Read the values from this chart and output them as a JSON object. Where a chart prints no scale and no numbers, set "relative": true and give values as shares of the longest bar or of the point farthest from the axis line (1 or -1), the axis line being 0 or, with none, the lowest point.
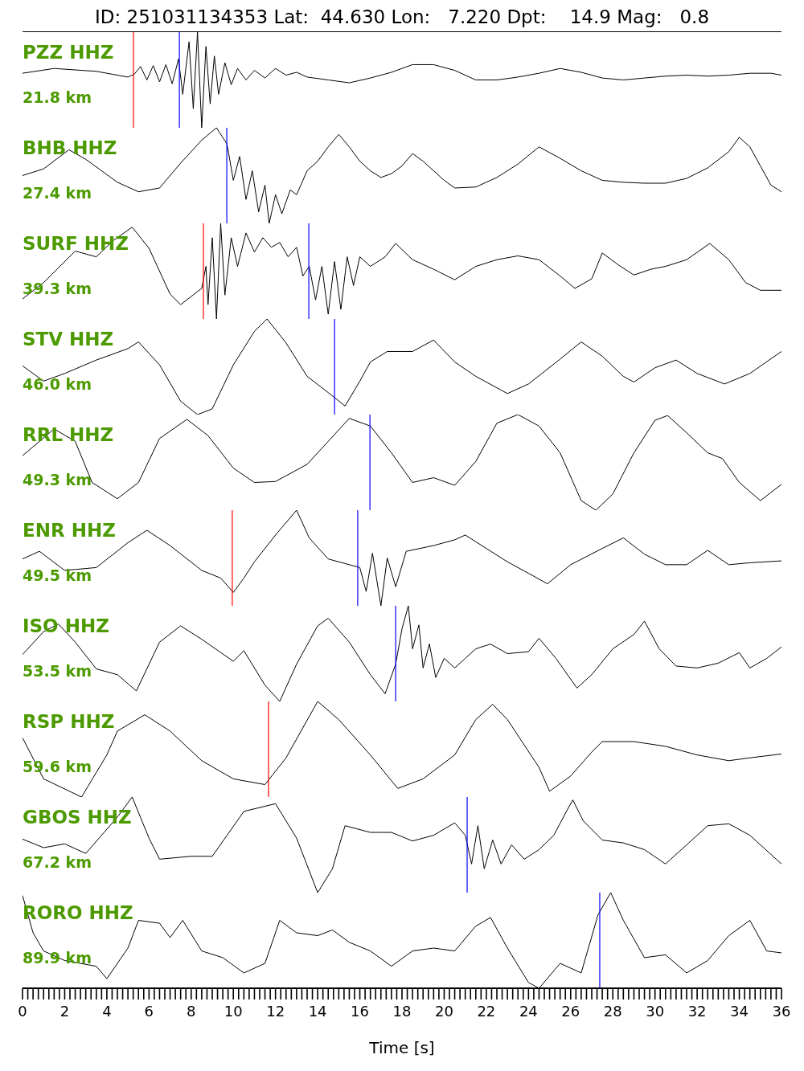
{
  "chart_data": [
    {
      "type": "line",
      "title": "ID: 251031134353 Lat:  44.630 Lon:   7.220 Dpt:    14.9 Mag:   0.8",
      "annotations": [
        "PZZ HHZ",
        "21.8 km"
      ],
      "relative": true,
      "color": "#000000",
      "xlim": [
        0,
        36
      ],
      "tick_labels": false,
      "x": [
        0,
        1.5,
        3.5,
        5,
        5.3,
        5.6,
        5.9,
        6.2,
        6.5,
        6.8,
        7.1,
        7.4,
        7.6,
        7.9,
        8.1,
        8.3,
        8.5,
        8.7,
        8.9,
        9.1,
        9.3,
        9.6,
        9.9,
        10.2,
        10.6,
        11,
        11.5,
        12,
        12.5,
        13,
        13.5,
        14.5,
        15.5,
        16.5,
        17.5,
        18.5,
        19.5,
        20.5,
        21.5,
        22.5,
        23.5,
        24.5,
        25.5,
        26.5,
        27.5,
        28.5,
        29.5,
        30.5,
        31.5,
        32.5,
        33.5,
        34.5,
        35.5,
        36
      ],
      "values": [
        0.57,
        0.62,
        0.59,
        0.53,
        0.56,
        0.64,
        0.5,
        0.65,
        0.48,
        0.66,
        0.46,
        0.72,
        0.35,
        0.9,
        0.2,
        1,
        0,
        0.85,
        0.25,
        0.75,
        0.35,
        0.68,
        0.45,
        0.62,
        0.5,
        0.6,
        0.52,
        0.62,
        0.55,
        0.58,
        0.53,
        0.5,
        0.47,
        0.52,
        0.58,
        0.66,
        0.66,
        0.6,
        0.5,
        0.5,
        0.53,
        0.57,
        0.62,
        0.58,
        0.52,
        0.5,
        0.52,
        0.54,
        0.55,
        0.54,
        0.55,
        0.57,
        0.57,
        0.55
      ],
      "ref_lines": [
        {
          "axis": "x",
          "value": 5.26,
          "color": "#ff0000"
        },
        {
          "axis": "x",
          "value": 7.44,
          "color": "#0000ff"
        }
      ]
    },
    {
      "type": "line",
      "annotations": [
        "BHB HHZ",
        "27.4 km"
      ],
      "relative": true,
      "color": "#000000",
      "xlim": [
        0,
        36
      ],
      "tick_labels": false,
      "x": [
        0,
        1,
        2.2,
        3,
        4.5,
        5.5,
        6.5,
        7.5,
        8.5,
        9.2,
        9.7,
        10,
        10.3,
        10.6,
        10.9,
        11.2,
        11.5,
        11.7,
        12,
        12.3,
        12.7,
        13,
        13.5,
        14,
        14.5,
        15,
        15.5,
        16,
        16.5,
        17,
        17.5,
        18,
        18.5,
        19,
        19.5,
        20,
        20.5,
        21.5,
        22.5,
        23.5,
        24.5,
        25.5,
        26.5,
        27.5,
        28.5,
        29.5,
        30.5,
        31.5,
        32.5,
        33.5,
        34,
        34.5,
        35,
        35.5,
        36
      ],
      "values": [
        0.5,
        0.57,
        0.77,
        0.67,
        0.43,
        0.33,
        0.37,
        0.63,
        0.87,
        1,
        0.83,
        0.45,
        0.7,
        0.25,
        0.55,
        0.12,
        0.4,
        0,
        0.3,
        0.1,
        0.35,
        0.3,
        0.55,
        0.65,
        0.8,
        0.93,
        0.8,
        0.65,
        0.55,
        0.48,
        0.52,
        0.6,
        0.73,
        0.65,
        0.55,
        0.45,
        0.37,
        0.38,
        0.48,
        0.62,
        0.8,
        0.68,
        0.55,
        0.45,
        0.43,
        0.42,
        0.42,
        0.47,
        0.58,
        0.75,
        0.9,
        0.8,
        0.6,
        0.4,
        0.33
      ],
      "ref_lines": [
        {
          "axis": "x",
          "value": 9.69,
          "color": "#0000ff"
        }
      ]
    },
    {
      "type": "line",
      "annotations": [
        "SURF HHZ",
        "39.3 km"
      ],
      "relative": true,
      "color": "#000000",
      "xlim": [
        0,
        36
      ],
      "tick_labels": false,
      "x": [
        0,
        1,
        2.5,
        3.5,
        4.3,
        5.2,
        6,
        7,
        7.5,
        8.5,
        8.7,
        8.8,
        9,
        9.2,
        9.4,
        9.6,
        9.9,
        10.2,
        10.6,
        11,
        11.4,
        11.8,
        12.2,
        12.6,
        13,
        13.3,
        13.6,
        13.9,
        14.2,
        14.5,
        14.8,
        15.1,
        15.4,
        15.7,
        16,
        16.5,
        17.2,
        17.7,
        18.5,
        19.5,
        20.5,
        21.5,
        22.5,
        23.5,
        24.5,
        25.5,
        26.2,
        27,
        27.5,
        28.3,
        29,
        29.8,
        30.5,
        31.5,
        32.6,
        33.5,
        34.3,
        35,
        36
      ],
      "values": [
        0.21,
        0.38,
        0.71,
        0.65,
        0.82,
        0.96,
        0.74,
        0.26,
        0.15,
        0.32,
        0.55,
        0.15,
        0.85,
        0,
        1,
        0.25,
        0.85,
        0.55,
        0.9,
        0.7,
        0.85,
        0.75,
        0.8,
        0.65,
        0.75,
        0.45,
        0.55,
        0.2,
        0.55,
        0.05,
        0.6,
        0.1,
        0.65,
        0.35,
        0.65,
        0.55,
        0.65,
        0.79,
        0.62,
        0.52,
        0.41,
        0.55,
        0.62,
        0.66,
        0.62,
        0.45,
        0.32,
        0.42,
        0.69,
        0.56,
        0.46,
        0.52,
        0.55,
        0.62,
        0.79,
        0.62,
        0.38,
        0.3,
        0.3
      ],
      "ref_lines": [
        {
          "axis": "x",
          "value": 8.58,
          "color": "#ff0000"
        },
        {
          "axis": "x",
          "value": 13.58,
          "color": "#0000ff"
        }
      ]
    },
    {
      "type": "line",
      "annotations": [
        "STV HHZ",
        "46.0 km"
      ],
      "relative": true,
      "color": "#000000",
      "xlim": [
        0,
        36
      ],
      "tick_labels": false,
      "x": [
        0,
        1,
        2,
        3.5,
        5,
        5.5,
        6.5,
        7.5,
        8.3,
        9,
        10,
        11,
        11.6,
        12.5,
        13.5,
        14.5,
        15.3,
        16,
        16.5,
        17.3,
        18.5,
        19.5,
        20.5,
        21.5,
        23,
        24,
        25.5,
        26.5,
        27.5,
        28.5,
        29,
        30,
        31,
        32,
        33.3,
        34.5,
        36
      ],
      "values": [
        0.51,
        0.35,
        0.43,
        0.57,
        0.69,
        0.76,
        0.52,
        0.14,
        0,
        0.06,
        0.52,
        0.87,
        1,
        0.75,
        0.4,
        0.23,
        0.09,
        0.35,
        0.55,
        0.66,
        0.66,
        0.78,
        0.55,
        0.4,
        0.22,
        0.32,
        0.58,
        0.76,
        0.61,
        0.4,
        0.34,
        0.49,
        0.57,
        0.43,
        0.32,
        0.43,
        0.66
      ],
      "ref_lines": [
        {
          "axis": "x",
          "value": 14.8,
          "color": "#0000ff"
        }
      ]
    },
    {
      "type": "line",
      "annotations": [
        "RRL HHZ",
        "49.3 km"
      ],
      "relative": true,
      "color": "#000000",
      "xlim": [
        0,
        36
      ],
      "tick_labels": false,
      "x": [
        0,
        1.5,
        2.5,
        3.3,
        4.5,
        5.5,
        6.5,
        7.8,
        8.8,
        10,
        11,
        12,
        13.5,
        14.5,
        15.5,
        16.5,
        17.5,
        18.5,
        19.5,
        20.5,
        21.5,
        22.5,
        23.5,
        24.5,
        25.5,
        26.5,
        27.2,
        28,
        29,
        30,
        30.6,
        31.5,
        32.5,
        33.2,
        34,
        35,
        36
      ],
      "values": [
        0.57,
        0.85,
        0.72,
        0.29,
        0.12,
        0.29,
        0.75,
        0.95,
        0.78,
        0.44,
        0.29,
        0.3,
        0.48,
        0.72,
        0.96,
        0.88,
        0.6,
        0.29,
        0.34,
        0.26,
        0.51,
        0.91,
        1,
        0.88,
        0.6,
        0.1,
        0,
        0.17,
        0.6,
        0.94,
        0.99,
        0.81,
        0.6,
        0.54,
        0.29,
        0.1,
        0.27
      ],
      "ref_lines": [
        {
          "axis": "x",
          "value": 16.48,
          "color": "#0000ff"
        }
      ]
    },
    {
      "type": "line",
      "annotations": [
        "ENR HHZ",
        "49.5 km"
      ],
      "relative": true,
      "color": "#000000",
      "xlim": [
        0,
        36
      ],
      "tick_labels": false,
      "x": [
        0,
        0.8,
        2,
        3.5,
        5,
        5.9,
        7,
        8.5,
        9.4,
        10,
        10.5,
        11,
        12,
        13,
        13.6,
        14.5,
        15.5,
        16,
        16.3,
        16.6,
        17,
        17.3,
        17.7,
        18.2,
        19.5,
        20.5,
        21,
        22,
        23,
        24,
        24.9,
        26,
        27.5,
        28.5,
        29.5,
        30.5,
        31.5,
        32.5,
        33.5,
        34.5,
        36
      ],
      "values": [
        0.49,
        0.57,
        0.37,
        0.4,
        0.66,
        0.79,
        0.63,
        0.37,
        0.29,
        0.14,
        0.29,
        0.46,
        0.74,
        1,
        0.71,
        0.49,
        0.43,
        0.4,
        0.15,
        0.55,
        0,
        0.5,
        0.2,
        0.57,
        0.63,
        0.69,
        0.74,
        0.6,
        0.46,
        0.34,
        0.23,
        0.43,
        0.6,
        0.71,
        0.54,
        0.43,
        0.43,
        0.58,
        0.43,
        0.45,
        0.47
      ],
      "ref_lines": [
        {
          "axis": "x",
          "value": 9.95,
          "color": "#ff0000"
        },
        {
          "axis": "x",
          "value": 15.9,
          "color": "#0000ff"
        }
      ]
    },
    {
      "type": "line",
      "annotations": [
        "ISO HHZ",
        "53.5 km"
      ],
      "relative": true,
      "color": "#000000",
      "xlim": [
        0,
        36
      ],
      "tick_labels": false,
      "x": [
        0,
        1,
        1.7,
        2.5,
        3.5,
        4.5,
        5.4,
        6.5,
        7.5,
        8.5,
        10,
        10.5,
        11.5,
        12.2,
        13,
        14,
        14.5,
        15.5,
        16.5,
        17.2,
        17.7,
        18,
        18.3,
        18.5,
        18.8,
        19,
        19.3,
        19.6,
        20,
        20.5,
        21,
        21.5,
        22.2,
        23,
        24,
        24.5,
        25.3,
        26.3,
        27,
        28,
        29,
        29.5,
        30.2,
        31,
        32,
        33,
        34,
        34.5,
        35.3,
        36
      ],
      "values": [
        0.49,
        0.73,
        0.81,
        0.62,
        0.34,
        0.28,
        0.11,
        0.62,
        0.79,
        0.65,
        0.42,
        0.53,
        0.17,
        0,
        0.39,
        0.79,
        0.87,
        0.62,
        0.28,
        0.08,
        0.39,
        0.76,
        1,
        0.55,
        0.8,
        0.35,
        0.6,
        0.25,
        0.45,
        0.35,
        0.45,
        0.55,
        0.6,
        0.5,
        0.52,
        0.66,
        0.45,
        0.14,
        0.28,
        0.55,
        0.7,
        0.84,
        0.55,
        0.37,
        0.35,
        0.4,
        0.51,
        0.35,
        0.45,
        0.57
      ],
      "ref_lines": [
        {
          "axis": "x",
          "value": 17.7,
          "color": "#0000ff"
        }
      ]
    },
    {
      "type": "line",
      "annotations": [
        "RSP HHZ",
        "59.6 km"
      ],
      "relative": true,
      "color": "#000000",
      "xlim": [
        0,
        36
      ],
      "tick_labels": false,
      "x": [
        0,
        1,
        2.8,
        4,
        4.5,
        5.8,
        7,
        8.5,
        10,
        11.5,
        12.5,
        14,
        15,
        16.5,
        17.8,
        19,
        20.5,
        21.5,
        22.3,
        23,
        24.5,
        25,
        26,
        27,
        27.5,
        29,
        30.5,
        32,
        33.5,
        34.5,
        36
      ],
      "values": [
        0.62,
        0.19,
        0,
        0.44,
        0.69,
        0.86,
        0.69,
        0.38,
        0.19,
        0.13,
        0.41,
        1,
        0.81,
        0.44,
        0.09,
        0.19,
        0.44,
        0.81,
        0.97,
        0.81,
        0.31,
        0.06,
        0.22,
        0.47,
        0.58,
        0.58,
        0.53,
        0.44,
        0.38,
        0.41,
        0.45
      ],
      "ref_lines": [
        {
          "axis": "x",
          "value": 11.67,
          "color": "#ff0000"
        }
      ]
    },
    {
      "type": "line",
      "annotations": [
        "GBOS HHZ",
        "67.2 km"
      ],
      "relative": true,
      "color": "#000000",
      "xlim": [
        0,
        36
      ],
      "tick_labels": false,
      "x": [
        0,
        1,
        2,
        3,
        4.5,
        5.2,
        6,
        6.5,
        8,
        9,
        10.5,
        12,
        13,
        14,
        14.7,
        15.3,
        16.5,
        17.5,
        18.5,
        19.5,
        20.5,
        21,
        21.3,
        21.6,
        21.9,
        22.3,
        22.7,
        23.2,
        23.8,
        24.5,
        25.2,
        25.8,
        26.1,
        26.6,
        27.5,
        28.5,
        29.5,
        30.5,
        31.5,
        32.5,
        33.5,
        34.5,
        35.5,
        36
      ],
      "values": [
        0.56,
        0.47,
        0.51,
        0.41,
        0.79,
        1,
        0.57,
        0.35,
        0.38,
        0.38,
        0.85,
        0.93,
        0.57,
        0,
        0.25,
        0.7,
        0.63,
        0.63,
        0.54,
        0.6,
        0.73,
        0.6,
        0.3,
        0.7,
        0.25,
        0.55,
        0.3,
        0.5,
        0.35,
        0.45,
        0.6,
        0.85,
        0.97,
        0.75,
        0.55,
        0.52,
        0.45,
        0.3,
        0.5,
        0.7,
        0.72,
        0.6,
        0.4,
        0.3
      ],
      "ref_lines": [
        {
          "axis": "x",
          "value": 21.09,
          "color": "#0000ff"
        }
      ]
    },
    {
      "type": "line",
      "annotations": [
        "RORO HHZ",
        "89.9 km"
      ],
      "relative": true,
      "color": "#000000",
      "xlim": [
        0,
        36
      ],
      "tick_labels": "x",
      "xlabel": "Time [s]",
      "xticks": [
        0,
        {
          "value": 0.25,
          "label": null
        },
        {
          "value": 0.5,
          "label": null
        },
        {
          "value": 0.75,
          "label": null
        },
        {
          "value": 1,
          "label": null
        },
        {
          "value": 1.25,
          "label": null
        },
        {
          "value": 1.5,
          "label": null
        },
        {
          "value": 1.75,
          "label": null
        },
        2,
        {
          "value": 2.25,
          "label": null
        },
        {
          "value": 2.5,
          "label": null
        },
        {
          "value": 2.75,
          "label": null
        },
        {
          "value": 3,
          "label": null
        },
        {
          "value": 3.25,
          "label": null
        },
        {
          "value": 3.5,
          "label": null
        },
        {
          "value": 3.75,
          "label": null
        },
        4,
        {
          "value": 4.25,
          "label": null
        },
        {
          "value": 4.5,
          "label": null
        },
        {
          "value": 4.75,
          "label": null
        },
        {
          "value": 5,
          "label": null
        },
        {
          "value": 5.25,
          "label": null
        },
        {
          "value": 5.5,
          "label": null
        },
        {
          "value": 5.75,
          "label": null
        },
        6,
        {
          "value": 6.25,
          "label": null
        },
        {
          "value": 6.5,
          "label": null
        },
        {
          "value": 6.75,
          "label": null
        },
        {
          "value": 7,
          "label": null
        },
        {
          "value": 7.25,
          "label": null
        },
        {
          "value": 7.5,
          "label": null
        },
        {
          "value": 7.75,
          "label": null
        },
        8,
        {
          "value": 8.25,
          "label": null
        },
        {
          "value": 8.5,
          "label": null
        },
        {
          "value": 8.75,
          "label": null
        },
        {
          "value": 9,
          "label": null
        },
        {
          "value": 9.25,
          "label": null
        },
        {
          "value": 9.5,
          "label": null
        },
        {
          "value": 9.75,
          "label": null
        },
        10,
        {
          "value": 10.25,
          "label": null
        },
        {
          "value": 10.5,
          "label": null
        },
        {
          "value": 10.75,
          "label": null
        },
        {
          "value": 11,
          "label": null
        },
        {
          "value": 11.25,
          "label": null
        },
        {
          "value": 11.5,
          "label": null
        },
        {
          "value": 11.75,
          "label": null
        },
        12,
        {
          "value": 12.25,
          "label": null
        },
        {
          "value": 12.5,
          "label": null
        },
        {
          "value": 12.75,
          "label": null
        },
        {
          "value": 13,
          "label": null
        },
        {
          "value": 13.25,
          "label": null
        },
        {
          "value": 13.5,
          "label": null
        },
        {
          "value": 13.75,
          "label": null
        },
        14,
        {
          "value": 14.25,
          "label": null
        },
        {
          "value": 14.5,
          "label": null
        },
        {
          "value": 14.75,
          "label": null
        },
        {
          "value": 15,
          "label": null
        },
        {
          "value": 15.25,
          "label": null
        },
        {
          "value": 15.5,
          "label": null
        },
        {
          "value": 15.75,
          "label": null
        },
        16,
        {
          "value": 16.25,
          "label": null
        },
        {
          "value": 16.5,
          "label": null
        },
        {
          "value": 16.75,
          "label": null
        },
        {
          "value": 17,
          "label": null
        },
        {
          "value": 17.25,
          "label": null
        },
        {
          "value": 17.5,
          "label": null
        },
        {
          "value": 17.75,
          "label": null
        },
        18,
        {
          "value": 18.25,
          "label": null
        },
        {
          "value": 18.5,
          "label": null
        },
        {
          "value": 18.75,
          "label": null
        },
        {
          "value": 19,
          "label": null
        },
        {
          "value": 19.25,
          "label": null
        },
        {
          "value": 19.5,
          "label": null
        },
        {
          "value": 19.75,
          "label": null
        },
        20,
        {
          "value": 20.25,
          "label": null
        },
        {
          "value": 20.5,
          "label": null
        },
        {
          "value": 20.75,
          "label": null
        },
        {
          "value": 21,
          "label": null
        },
        {
          "value": 21.25,
          "label": null
        },
        {
          "value": 21.5,
          "label": null
        },
        {
          "value": 21.75,
          "label": null
        },
        22,
        {
          "value": 22.25,
          "label": null
        },
        {
          "value": 22.5,
          "label": null
        },
        {
          "value": 22.75,
          "label": null
        },
        {
          "value": 23,
          "label": null
        },
        {
          "value": 23.25,
          "label": null
        },
        {
          "value": 23.5,
          "label": null
        },
        {
          "value": 23.75,
          "label": null
        },
        24,
        {
          "value": 24.25,
          "label": null
        },
        {
          "value": 24.5,
          "label": null
        },
        {
          "value": 24.75,
          "label": null
        },
        {
          "value": 25,
          "label": null
        },
        {
          "value": 25.25,
          "label": null
        },
        {
          "value": 25.5,
          "label": null
        },
        {
          "value": 25.75,
          "label": null
        },
        26,
        {
          "value": 26.25,
          "label": null
        },
        {
          "value": 26.5,
          "label": null
        },
        {
          "value": 26.75,
          "label": null
        },
        {
          "value": 27,
          "label": null
        },
        {
          "value": 27.25,
          "label": null
        },
        {
          "value": 27.5,
          "label": null
        },
        {
          "value": 27.75,
          "label": null
        },
        28,
        {
          "value": 28.25,
          "label": null
        },
        {
          "value": 28.5,
          "label": null
        },
        {
          "value": 28.75,
          "label": null
        },
        {
          "value": 29,
          "label": null
        },
        {
          "value": 29.25,
          "label": null
        },
        {
          "value": 29.5,
          "label": null
        },
        {
          "value": 29.75,
          "label": null
        },
        30,
        {
          "value": 30.25,
          "label": null
        },
        {
          "value": 30.5,
          "label": null
        },
        {
          "value": 30.75,
          "label": null
        },
        {
          "value": 31,
          "label": null
        },
        {
          "value": 31.25,
          "label": null
        },
        {
          "value": 31.5,
          "label": null
        },
        {
          "value": 31.75,
          "label": null
        },
        32,
        {
          "value": 32.25,
          "label": null
        },
        {
          "value": 32.5,
          "label": null
        },
        {
          "value": 32.75,
          "label": null
        },
        {
          "value": 33,
          "label": null
        },
        {
          "value": 33.25,
          "label": null
        },
        {
          "value": 33.5,
          "label": null
        },
        {
          "value": 33.75,
          "label": null
        },
        34,
        {
          "value": 34.25,
          "label": null
        },
        {
          "value": 34.5,
          "label": null
        },
        {
          "value": 34.75,
          "label": null
        },
        {
          "value": 35,
          "label": null
        },
        {
          "value": 35.25,
          "label": null
        },
        {
          "value": 35.5,
          "label": null
        },
        {
          "value": 35.75,
          "label": null
        },
        36
      ],
      "x": [
        0,
        0.5,
        1,
        2,
        3.5,
        4,
        5,
        5.5,
        6.5,
        7,
        7.6,
        8.5,
        9.5,
        10.5,
        11.5,
        12.2,
        13,
        14,
        14.7,
        15.5,
        16.5,
        17.5,
        18.5,
        19.5,
        20.5,
        21.5,
        22.2,
        23,
        24,
        24.5,
        25.5,
        26.5,
        27.3,
        27.9,
        28.5,
        29.5,
        30.5,
        31.5,
        32.5,
        33.5,
        34.5,
        35.3,
        36
      ],
      "values": [
        0.97,
        0.58,
        0.39,
        0.29,
        0.23,
        0.1,
        0.42,
        0.71,
        0.68,
        0.53,
        0.71,
        0.39,
        0.32,
        0.16,
        0.26,
        0.71,
        0.58,
        0.55,
        0.61,
        0.48,
        0.39,
        0.23,
        0.39,
        0.42,
        0.39,
        0.65,
        0.74,
        0.42,
        0.06,
        0,
        0.26,
        0.16,
        0.77,
        1,
        0.71,
        0.32,
        0.35,
        0.16,
        0.29,
        0.55,
        0.71,
        0.39,
        0.37
      ],
      "ref_lines": [
        {
          "axis": "x",
          "value": 27.38,
          "color": "#0000ff"
        }
      ]
    }
  ]
}
